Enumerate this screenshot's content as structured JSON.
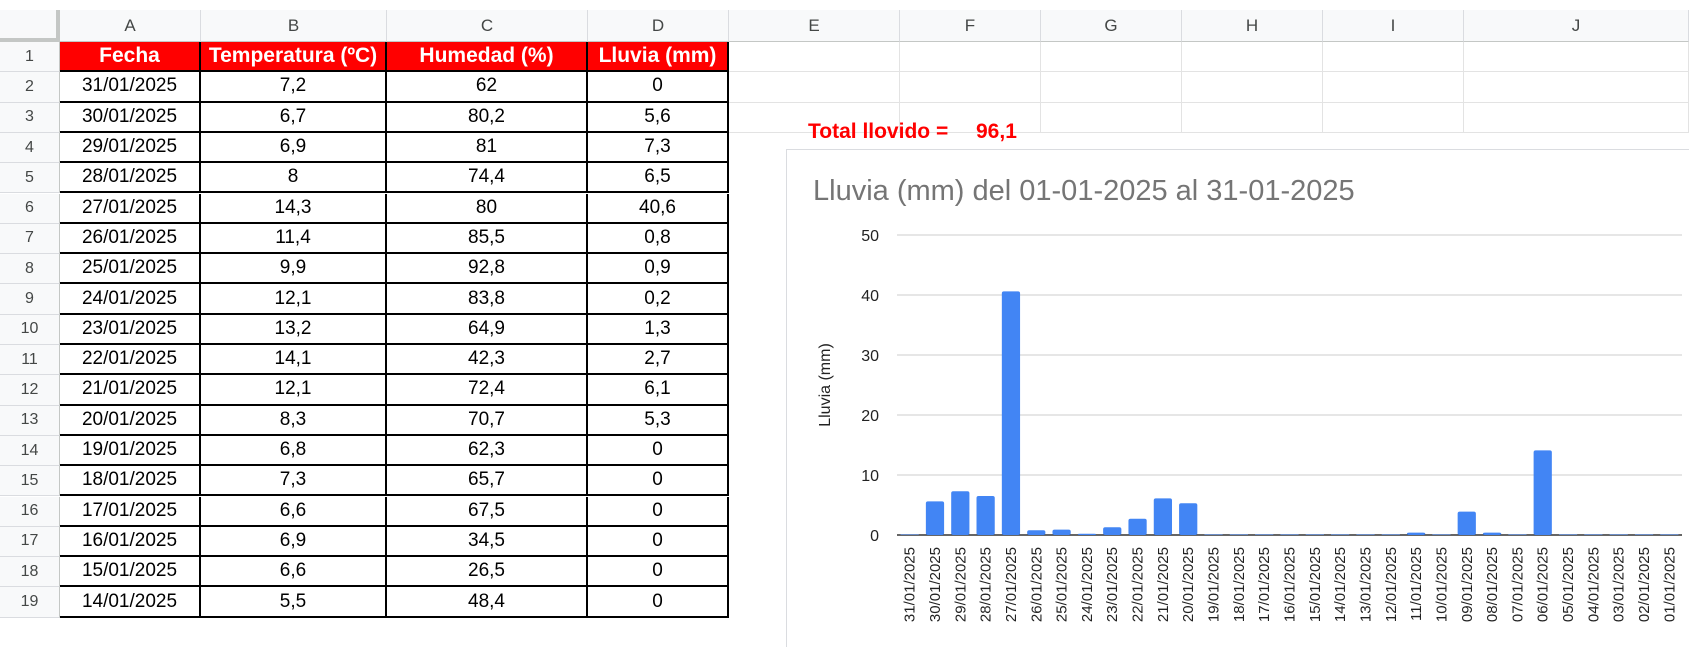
{
  "spreadsheet": {
    "column_headers": [
      "A",
      "B",
      "C",
      "D",
      "E",
      "F",
      "G",
      "H",
      "I",
      "J"
    ],
    "row_numbers": [
      "1",
      "2",
      "3",
      "4",
      "5",
      "6",
      "7",
      "8",
      "9",
      "10",
      "11",
      "12",
      "13",
      "14",
      "15",
      "16",
      "17",
      "18",
      "19"
    ],
    "table_headers": [
      "Fecha",
      "Temperatura (ºC)",
      "Humedad (%)",
      "Lluvia (mm)"
    ],
    "rows": [
      [
        "31/01/2025",
        "7,2",
        "62",
        "0"
      ],
      [
        "30/01/2025",
        "6,7",
        "80,2",
        "5,6"
      ],
      [
        "29/01/2025",
        "6,9",
        "81",
        "7,3"
      ],
      [
        "28/01/2025",
        "8",
        "74,4",
        "6,5"
      ],
      [
        "27/01/2025",
        "14,3",
        "80",
        "40,6"
      ],
      [
        "26/01/2025",
        "11,4",
        "85,5",
        "0,8"
      ],
      [
        "25/01/2025",
        "9,9",
        "92,8",
        "0,9"
      ],
      [
        "24/01/2025",
        "12,1",
        "83,8",
        "0,2"
      ],
      [
        "23/01/2025",
        "13,2",
        "64,9",
        "1,3"
      ],
      [
        "22/01/2025",
        "14,1",
        "42,3",
        "2,7"
      ],
      [
        "21/01/2025",
        "12,1",
        "72,4",
        "6,1"
      ],
      [
        "20/01/2025",
        "8,3",
        "70,7",
        "5,3"
      ],
      [
        "19/01/2025",
        "6,8",
        "62,3",
        "0"
      ],
      [
        "18/01/2025",
        "7,3",
        "65,7",
        "0"
      ],
      [
        "17/01/2025",
        "6,6",
        "67,5",
        "0"
      ],
      [
        "16/01/2025",
        "6,9",
        "34,5",
        "0"
      ],
      [
        "15/01/2025",
        "6,6",
        "26,5",
        "0"
      ],
      [
        "14/01/2025",
        "5,5",
        "48,4",
        "0"
      ]
    ],
    "total_label": "Total llovido =",
    "total_value": "96,1",
    "colors": {
      "header_bg": "#ff0000",
      "header_text": "#ffffff",
      "total_text": "#ff0000",
      "bar": "#4285f4"
    }
  },
  "chart_data": {
    "type": "bar",
    "title": "Lluvia (mm) del 01-01-2025 al 31-01-2025",
    "xlabel": "",
    "ylabel": "Lluvia (mm)",
    "ylim": [
      0,
      50
    ],
    "yticks": [
      0,
      10,
      20,
      30,
      40,
      50
    ],
    "categories": [
      "31/01/2025",
      "30/01/2025",
      "29/01/2025",
      "28/01/2025",
      "27/01/2025",
      "26/01/2025",
      "25/01/2025",
      "24/01/2025",
      "23/01/2025",
      "22/01/2025",
      "21/01/2025",
      "20/01/2025",
      "19/01/2025",
      "18/01/2025",
      "17/01/2025",
      "16/01/2025",
      "15/01/2025",
      "14/01/2025",
      "13/01/2025",
      "12/01/2025",
      "11/01/2025",
      "10/01/2025",
      "09/01/2025",
      "08/01/2025",
      "07/01/2025",
      "06/01/2025",
      "05/01/2025",
      "04/01/2025",
      "03/01/2025",
      "02/01/2025",
      "01/01/2025"
    ],
    "values": [
      0,
      5.6,
      7.3,
      6.5,
      40.6,
      0.8,
      0.9,
      0.2,
      1.3,
      2.7,
      6.1,
      5.3,
      0,
      0,
      0,
      0,
      0,
      0,
      0,
      0,
      0.4,
      0,
      3.9,
      0.4,
      0,
      14.1,
      0,
      0,
      0,
      0,
      0
    ],
    "grid": true,
    "legend": "none",
    "color": "#4285f4"
  }
}
